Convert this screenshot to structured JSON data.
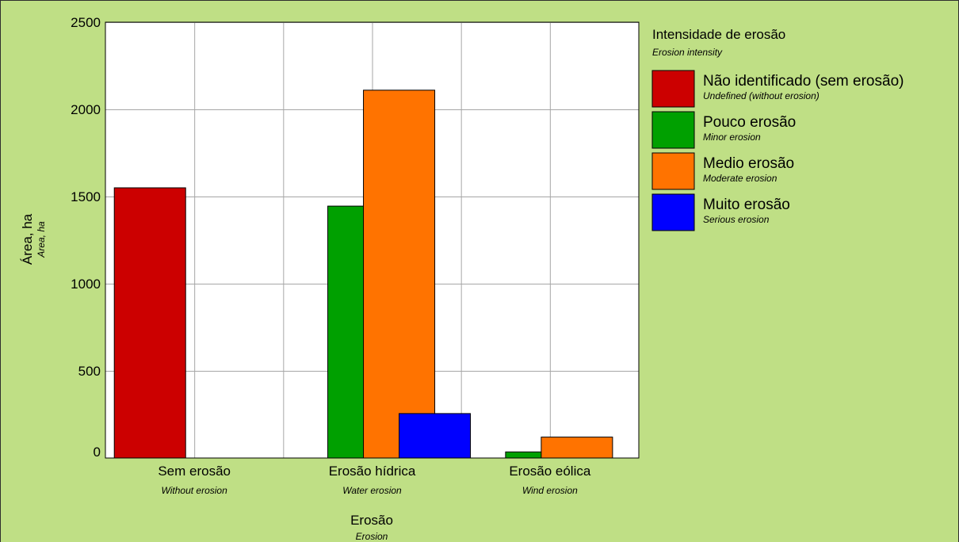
{
  "colors": {
    "background": "#bfdf85",
    "plot_bg": "#ffffff",
    "grid": "#a6a6a6",
    "axis": "#000000",
    "frame": "#2e2e2e"
  },
  "chart_data": {
    "type": "bar",
    "categories": [
      "Sem erosão",
      "Erosão hídrica",
      "Erosão eólica"
    ],
    "categories_en": [
      "Without erosion",
      "Water erosion",
      "Wind erosion"
    ],
    "xlabel": "Erosão",
    "xlabel_en": "Erosion",
    "ylabel": "Área, ha",
    "ylabel_en": "Area, ha",
    "ylim": [
      0,
      2500
    ],
    "yticks": [
      0,
      500,
      1000,
      1500,
      2000,
      2500
    ],
    "grid": true,
    "legend_placement": "right",
    "legend_title": "Intensidade de erosão",
    "legend_title_en": "Erosion intensity",
    "series": [
      {
        "name": "Não identificado (sem erosão)",
        "name_en": "Undefined (without erosion)",
        "color": "#cc0000",
        "values": [
          1550,
          null,
          null
        ]
      },
      {
        "name": "Pouco erosão",
        "name_en": "Minor erosion",
        "color": "#00a000",
        "values": [
          null,
          1445,
          35
        ]
      },
      {
        "name": "Medio erosão",
        "name_en": "Moderate erosion",
        "color": "#ff7300",
        "values": [
          null,
          2110,
          120
        ]
      },
      {
        "name": "Muito erosão",
        "name_en": "Serious erosion",
        "color": "#0000ff",
        "values": [
          null,
          255,
          null
        ]
      }
    ]
  }
}
